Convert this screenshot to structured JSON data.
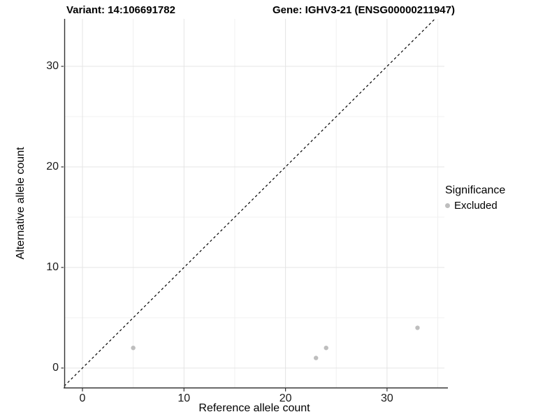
{
  "figure": {
    "title_left": "Variant: 14:106691782",
    "title_right": "Gene: IGHV3-21 (ENSG00000211947)"
  },
  "axes": {
    "x_label": "Reference allele count",
    "y_label": "Alternative allele count"
  },
  "legend": {
    "title": "Significance",
    "items": [
      {
        "label": "Excluded",
        "color": "#bebebe"
      }
    ]
  },
  "colors": {
    "point": "#bebebe",
    "grid_major": "#e4e4e4",
    "grid_minor": "#f0f0f0",
    "axis_line": "#333333",
    "tick_mark": "#333333",
    "identity_line": "#000000",
    "text": "#000000",
    "background": "#ffffff"
  },
  "chart_data": {
    "type": "scatter",
    "title": "Variant: 14:106691782 | Gene: IGHV3-21 (ENSG00000211947)",
    "xlabel": "Reference allele count",
    "ylabel": "Alternative allele count",
    "xlim": [
      -1.8,
      35.7
    ],
    "ylim": [
      -1.9,
      34.7
    ],
    "x_ticks": [
      0,
      10,
      20,
      30
    ],
    "y_ticks": [
      0,
      10,
      20,
      30
    ],
    "x_minor_ticks": [
      5,
      15,
      25,
      35
    ],
    "y_minor_ticks": [
      5,
      15,
      25,
      35
    ],
    "grid": true,
    "legend_position": "right",
    "series": [
      {
        "name": "Excluded",
        "color": "#bebebe",
        "points": [
          {
            "x": 5,
            "y": 2
          },
          {
            "x": 23,
            "y": 1
          },
          {
            "x": 24,
            "y": 2
          },
          {
            "x": 33,
            "y": 4
          }
        ]
      }
    ],
    "reference_line": {
      "slope": 1,
      "intercept": 0,
      "style": "dashed"
    }
  }
}
